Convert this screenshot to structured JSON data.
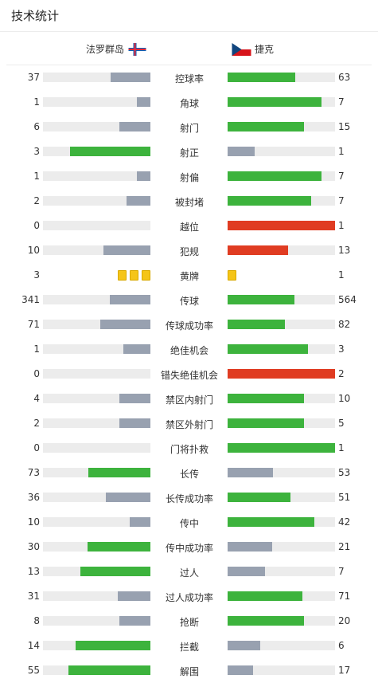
{
  "header": {
    "title": "技术统计"
  },
  "teams": {
    "home": "法罗群岛",
    "away": "捷克"
  },
  "colors": {
    "win": "#3db33d",
    "lose": "#98a1b0",
    "red": "#e03c22",
    "track": "#ececec",
    "card": "#f5c518"
  },
  "stats": [
    {
      "label": "控球率",
      "home": "37",
      "away": "63",
      "home_frac": 0.37,
      "away_frac": 0.63,
      "home_color": "lose",
      "away_color": "win"
    },
    {
      "label": "角球",
      "home": "1",
      "away": "7",
      "home_frac": 0.125,
      "away_frac": 0.875,
      "home_color": "lose",
      "away_color": "win"
    },
    {
      "label": "射门",
      "home": "6",
      "away": "15",
      "home_frac": 0.286,
      "away_frac": 0.714,
      "home_color": "lose",
      "away_color": "win"
    },
    {
      "label": "射正",
      "home": "3",
      "away": "1",
      "home_frac": 0.75,
      "away_frac": 0.25,
      "home_color": "win",
      "away_color": "lose"
    },
    {
      "label": "射偏",
      "home": "1",
      "away": "7",
      "home_frac": 0.125,
      "away_frac": 0.875,
      "home_color": "lose",
      "away_color": "win"
    },
    {
      "label": "被封堵",
      "home": "2",
      "away": "7",
      "home_frac": 0.222,
      "away_frac": 0.778,
      "home_color": "lose",
      "away_color": "win"
    },
    {
      "label": "越位",
      "home": "0",
      "away": "1",
      "home_frac": 0,
      "away_frac": 1,
      "home_color": "lose",
      "away_color": "red"
    },
    {
      "label": "犯规",
      "home": "10",
      "away": "13",
      "home_frac": 0.435,
      "away_frac": 0.565,
      "home_color": "lose",
      "away_color": "red"
    },
    {
      "label": "黄牌",
      "home": "3",
      "away": "1",
      "home_cards": 3,
      "away_cards": 1,
      "type": "cards"
    },
    {
      "label": "传球",
      "home": "341",
      "away": "564",
      "home_frac": 0.377,
      "away_frac": 0.623,
      "home_color": "lose",
      "away_color": "win"
    },
    {
      "label": "传球成功率",
      "home": "71",
      "away": "82",
      "home_frac": 0.464,
      "away_frac": 0.536,
      "home_color": "lose",
      "away_color": "win"
    },
    {
      "label": "绝佳机会",
      "home": "1",
      "away": "3",
      "home_frac": 0.25,
      "away_frac": 0.75,
      "home_color": "lose",
      "away_color": "win"
    },
    {
      "label": "错失绝佳机会",
      "home": "0",
      "away": "2",
      "home_frac": 0,
      "away_frac": 1,
      "home_color": "lose",
      "away_color": "red"
    },
    {
      "label": "禁区内射门",
      "home": "4",
      "away": "10",
      "home_frac": 0.286,
      "away_frac": 0.714,
      "home_color": "lose",
      "away_color": "win"
    },
    {
      "label": "禁区外射门",
      "home": "2",
      "away": "5",
      "home_frac": 0.286,
      "away_frac": 0.714,
      "home_color": "lose",
      "away_color": "win"
    },
    {
      "label": "门将扑救",
      "home": "0",
      "away": "1",
      "home_frac": 0,
      "away_frac": 1,
      "home_color": "lose",
      "away_color": "win"
    },
    {
      "label": "长传",
      "home": "73",
      "away": "53",
      "home_frac": 0.579,
      "away_frac": 0.421,
      "home_color": "win",
      "away_color": "lose"
    },
    {
      "label": "长传成功率",
      "home": "36",
      "away": "51",
      "home_frac": 0.414,
      "away_frac": 0.586,
      "home_color": "lose",
      "away_color": "win"
    },
    {
      "label": "传中",
      "home": "10",
      "away": "42",
      "home_frac": 0.192,
      "away_frac": 0.808,
      "home_color": "lose",
      "away_color": "win"
    },
    {
      "label": "传中成功率",
      "home": "30",
      "away": "21",
      "home_frac": 0.588,
      "away_frac": 0.412,
      "home_color": "win",
      "away_color": "lose"
    },
    {
      "label": "过人",
      "home": "13",
      "away": "7",
      "home_frac": 0.65,
      "away_frac": 0.35,
      "home_color": "win",
      "away_color": "lose"
    },
    {
      "label": "过人成功率",
      "home": "31",
      "away": "71",
      "home_frac": 0.304,
      "away_frac": 0.696,
      "home_color": "lose",
      "away_color": "win"
    },
    {
      "label": "抢断",
      "home": "8",
      "away": "20",
      "home_frac": 0.286,
      "away_frac": 0.714,
      "home_color": "lose",
      "away_color": "win"
    },
    {
      "label": "拦截",
      "home": "14",
      "away": "6",
      "home_frac": 0.7,
      "away_frac": 0.3,
      "home_color": "win",
      "away_color": "lose"
    },
    {
      "label": "解围",
      "home": "55",
      "away": "17",
      "home_frac": 0.764,
      "away_frac": 0.236,
      "home_color": "win",
      "away_color": "lose"
    }
  ]
}
